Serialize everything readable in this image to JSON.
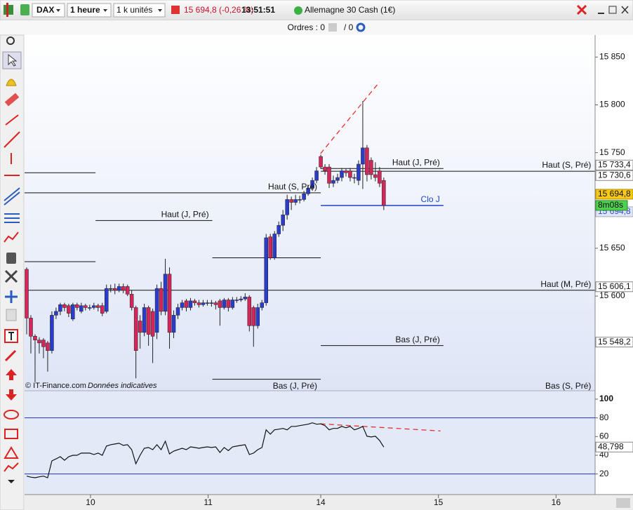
{
  "toolbar": {
    "symbol": "DAX",
    "timeframe": "1 heure",
    "size": "1 k unités",
    "price": "15 694,8 (-0,26 %)",
    "time": "13:51:51",
    "instrument": "Allemagne 30 Cash (1€)"
  },
  "orders": {
    "label": "Ordres : 0",
    "count": "/ 0"
  },
  "footer": {
    "source": "© IT-Finance.com",
    "note": "Données indicatives"
  },
  "chart_data": [
    {
      "type": "candlestick",
      "open": [
        15628,
        15577,
        15558,
        15554,
        15554,
        15551,
        15543,
        15580,
        15584,
        15591,
        15590,
        15576,
        15591,
        15584,
        15590,
        15588,
        15588,
        15590,
        15590,
        15584,
        15608,
        15608,
        15606,
        15610,
        15610,
        15602,
        15588,
        15574,
        15562,
        15588,
        15584,
        15562,
        15608,
        15584,
        15623,
        15562,
        15580,
        15588,
        15595,
        15588,
        15595,
        15593,
        15591,
        15593,
        15593,
        15593,
        15595,
        15588,
        15596,
        15588,
        15596,
        15596,
        15597,
        15599,
        15588,
        15569,
        15588,
        15593,
        15662,
        15640,
        15665,
        15674,
        15685,
        15701,
        15698,
        15701,
        15701,
        15707,
        15713,
        15721,
        15746,
        15735,
        15735,
        15718,
        15721,
        15724,
        15731,
        15731,
        15724,
        15721,
        15738,
        15755,
        15742,
        15727,
        15731,
        15721
      ],
      "high": [
        15630,
        15580,
        15560,
        15557,
        15556,
        15553,
        15584,
        15588,
        15593,
        15593,
        15592,
        15593,
        15593,
        15593,
        15592,
        15591,
        15593,
        15592,
        15593,
        15612,
        15612,
        15613,
        15613,
        15613,
        15612,
        15606,
        15590,
        15580,
        15592,
        15590,
        15587,
        15612,
        15615,
        15639,
        15630,
        15585,
        15592,
        15596,
        15597,
        15598,
        15597,
        15596,
        15596,
        15596,
        15596,
        15595,
        15597,
        15598,
        15598,
        15599,
        15599,
        15600,
        15603,
        15601,
        15590,
        15592,
        15596,
        15665,
        15665,
        15668,
        15678,
        15690,
        15706,
        15704,
        15706,
        15705,
        15710,
        15716,
        15724,
        15735,
        15748,
        15738,
        15738,
        15726,
        15728,
        15734,
        15733,
        15734,
        15728,
        15742,
        15804,
        15758,
        15745,
        15740,
        15735,
        15724
      ],
      "low": [
        15560,
        15540,
        15510,
        15540,
        15535,
        15521,
        15540,
        15576,
        15580,
        15584,
        15578,
        15574,
        15585,
        15582,
        15585,
        15585,
        15586,
        15584,
        15579,
        15582,
        15604,
        15602,
        15604,
        15603,
        15600,
        15585,
        15514,
        15545,
        15558,
        15548,
        15530,
        15555,
        15580,
        15580,
        15545,
        15556,
        15576,
        15585,
        15584,
        15585,
        15590,
        15588,
        15589,
        15590,
        15589,
        15586,
        15569,
        15586,
        15584,
        15586,
        15593,
        15594,
        15595,
        15563,
        15547,
        15566,
        15585,
        15590,
        15638,
        15638,
        15662,
        15668,
        15680,
        15690,
        15695,
        15697,
        15699,
        15705,
        15710,
        15718,
        15733,
        15727,
        15713,
        15714,
        15718,
        15720,
        15725,
        15720,
        15718,
        15716,
        15712,
        15720,
        15722,
        15720,
        15714,
        15690
      ],
      "close": [
        15577,
        15558,
        15554,
        15551,
        15547,
        15543,
        15580,
        15584,
        15591,
        15588,
        15582,
        15591,
        15588,
        15590,
        15588,
        15588,
        15590,
        15588,
        15582,
        15608,
        15608,
        15606,
        15610,
        15606,
        15602,
        15588,
        15543,
        15562,
        15588,
        15560,
        15558,
        15608,
        15584,
        15623,
        15562,
        15580,
        15588,
        15593,
        15588,
        15595,
        15593,
        15591,
        15593,
        15593,
        15593,
        15591,
        15588,
        15596,
        15588,
        15596,
        15596,
        15597,
        15599,
        15569,
        15569,
        15588,
        15593,
        15661,
        15640,
        15665,
        15674,
        15685,
        15701,
        15698,
        15701,
        15701,
        15707,
        15713,
        15721,
        15731,
        15735,
        15731,
        15718,
        15721,
        15724,
        15731,
        15729,
        15724,
        15724,
        15738,
        15755,
        15727,
        15727,
        15724,
        15718,
        15694.8
      ],
      "up_color": "#2b3ccc",
      "down_color": "#d4265a",
      "xlim": [
        -0.5,
        135.3
      ],
      "ylim": [
        15501,
        15873
      ],
      "yticks": [
        {
          "value": 15600,
          "label": "15 600"
        },
        {
          "value": 15650,
          "label": "15 650"
        },
        {
          "value": 15750,
          "label": "15 750"
        },
        {
          "value": 15800,
          "label": "15 800"
        },
        {
          "value": 15850,
          "label": "15 850"
        }
      ],
      "levels": [
        {
          "value": 15729,
          "start": -0.5,
          "end": 16.4
        },
        {
          "label": "Haut (S, Pré)",
          "value": 15708,
          "start": -0.5,
          "end": 70
        },
        {
          "label": "Haut (J, Pré)",
          "value": 15679,
          "start": 16.4,
          "end": 44.2
        },
        {
          "value": 15636,
          "start": -0.5,
          "end": 16.4
        },
        {
          "value": 15640,
          "start": 44.2,
          "end": 70
        },
        {
          "label": "Haut (J, Pré)",
          "value": 15733.4,
          "start": 70,
          "end": 99.2
        },
        {
          "label": "Haut (S, Pré)",
          "value": 15730.6,
          "start": 70,
          "end": 135.2
        },
        {
          "label": "Haut (M, Pré)",
          "value": 15606.1,
          "start": -0.5,
          "end": 135.2
        },
        {
          "label": "Bas (J, Pré)",
          "value": 15548.2,
          "start": 70,
          "end": 99.2
        },
        {
          "label": "Bas (J, Pré)",
          "value": 15513,
          "start": 44.2,
          "end": 70,
          "label_position": "below"
        },
        {
          "label": "Clo J",
          "value": 15694.8,
          "start": 70,
          "end": 99.2,
          "color": "#1f45c8"
        },
        {
          "label": "Bas (S, Pré)",
          "value": 15495,
          "start": 70,
          "end": 135.2
        }
      ],
      "level_color": "#111",
      "trendline": {
        "x": [
          69.95,
          84
        ],
        "values": [
          15749,
          15824
        ],
        "color": "#e53030"
      },
      "price_tags": [
        {
          "value": 15733.4,
          "label": "15 733,4",
          "style": "plain"
        },
        {
          "value": 15730.6,
          "label": "15 730,6",
          "style": "plain"
        },
        {
          "value": 15694.8,
          "label": "15 694,8",
          "style": "close"
        },
        {
          "value": 15694.8,
          "label": "15 694,8",
          "style": "current"
        },
        {
          "value": 15606.1,
          "label": "15 606,1",
          "style": "plain"
        },
        {
          "value": 15548.2,
          "label": "15 548,2",
          "style": "plain"
        }
      ],
      "countdown": "8m08s"
    },
    {
      "type": "line",
      "values": [
        17.7,
        16.6,
        16,
        17,
        17.7,
        16,
        34,
        36.2,
        38.5,
        34.7,
        38.5,
        40,
        40,
        42.3,
        42.3,
        42.3,
        40.8,
        42.3,
        40,
        49.8,
        51.3,
        52.1,
        52.8,
        50.6,
        51.3,
        46,
        30.9,
        40,
        47.5,
        48.3,
        46,
        51.3,
        46,
        55.1,
        41.5,
        44.5,
        46,
        47.5,
        46,
        49,
        48.3,
        47.5,
        48.3,
        49,
        48.3,
        49,
        43,
        48.3,
        45,
        49,
        49.8,
        50.6,
        51.3,
        40.8,
        42.3,
        46,
        48.3,
        67.2,
        62.6,
        67.2,
        67.9,
        68.7,
        67.2,
        70.9,
        70.9,
        71.7,
        72.5,
        73.2,
        74.7,
        73.2,
        73.6,
        71.7,
        67.2,
        68.7,
        68.7,
        70.9,
        69.4,
        70.9,
        67.2,
        68.7,
        70.9,
        60.4,
        59.6,
        60.4,
        55.8,
        48.798
      ],
      "color": "#111",
      "xlim": [
        -0.5,
        135.3
      ],
      "ylim": [
        -2,
        109
      ],
      "yticks": [
        100,
        80,
        60,
        40,
        20
      ],
      "levels": [
        80,
        20
      ],
      "level_color": "#2233bb",
      "trendline": {
        "x": [
          69.95,
          98.5
        ],
        "values": [
          73.6,
          66
        ],
        "color": "#e53030"
      },
      "tag": {
        "value": 48.798,
        "label": "48,798"
      },
      "xticks": [
        {
          "value": 15.2,
          "label": "10"
        },
        {
          "value": 43.2,
          "label": "11"
        },
        {
          "value": 70,
          "label": "14"
        },
        {
          "value": 98,
          "label": "15"
        },
        {
          "value": 126,
          "label": "16"
        }
      ]
    }
  ]
}
